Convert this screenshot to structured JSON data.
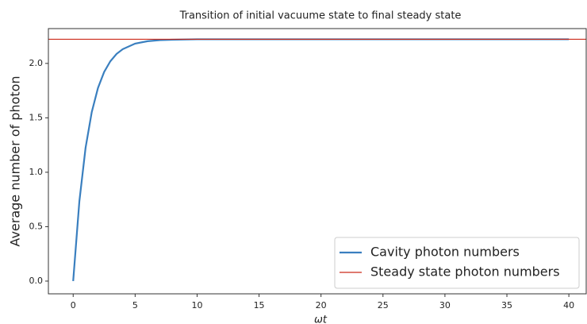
{
  "chart_data": {
    "type": "line",
    "title": "Transition of initial vacuume state to final steady state",
    "xlabel": "ωt",
    "ylabel": "Average number of photon",
    "series": [
      {
        "name": "Cavity photon numbers",
        "color": "#3a7fbf",
        "x": [
          0,
          0.5,
          1,
          1.5,
          2,
          2.5,
          3,
          3.5,
          4,
          5,
          6,
          7,
          8,
          10,
          15,
          20,
          25,
          30,
          35,
          40
        ],
        "values": [
          0,
          0.733,
          1.224,
          1.553,
          1.774,
          1.922,
          2.02,
          2.087,
          2.131,
          2.182,
          2.204,
          2.214,
          2.218,
          2.222,
          2.222,
          2.222,
          2.222,
          2.222,
          2.222,
          2.222
        ]
      }
    ],
    "hlines": [
      {
        "name": "Steady state photon numbers",
        "color": "#cc2a1a",
        "value": 2.222
      }
    ],
    "xlim": [
      -2,
      41.4
    ],
    "ylim": [
      -0.117,
      2.32
    ],
    "xticks": [
      0,
      5,
      10,
      15,
      20,
      25,
      30,
      35,
      40
    ],
    "yticks": [
      {
        "value": 0,
        "label": "0.0"
      },
      {
        "value": 0.5,
        "label": "0.5"
      },
      {
        "value": 1,
        "label": "1.0"
      },
      {
        "value": 1.5,
        "label": "1.5"
      },
      {
        "value": 2,
        "label": "2.0"
      }
    ],
    "legend": "lower right"
  }
}
